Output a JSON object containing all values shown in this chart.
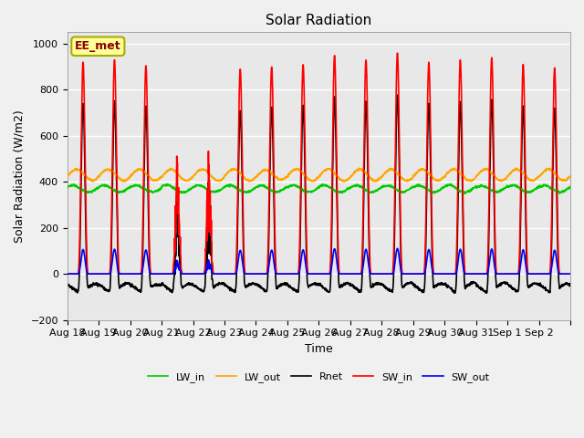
{
  "title": "Solar Radiation",
  "ylabel": "Solar Radiation (W/m2)",
  "xlabel": "Time",
  "ylim": [
    -200,
    1050
  ],
  "annotation_text": "EE_met",
  "annotation_color": "#8B0000",
  "annotation_bg": "#FFFF99",
  "annotation_border": "#AAAA00",
  "lines": {
    "SW_in": {
      "color": "#FF0000",
      "lw": 1.2,
      "zorder": 4
    },
    "SW_out": {
      "color": "#0000FF",
      "lw": 1.2,
      "zorder": 4
    },
    "LW_in": {
      "color": "#00CC00",
      "lw": 1.2,
      "zorder": 3
    },
    "LW_out": {
      "color": "#FFA500",
      "lw": 1.2,
      "zorder": 3
    },
    "Rnet": {
      "color": "#000000",
      "lw": 1.2,
      "zorder": 2
    }
  },
  "xtick_labels": [
    "Aug 18",
    "Aug 19",
    "Aug 20",
    "Aug 21",
    "Aug 22",
    "Aug 23",
    "Aug 24",
    "Aug 25",
    "Aug 26",
    "Aug 27",
    "Aug 28",
    "Aug 29",
    "Aug 30",
    "Aug 31",
    "Sep 1",
    "Sep 2"
  ],
  "grid_color": "#FFFFFF",
  "bg_color": "#E8E8E8",
  "fig_bg": "#F0F0F0",
  "n_days": 16,
  "pts_per_day": 144,
  "legend_ncol": 5,
  "sw_in_peaks": [
    920,
    930,
    905,
    600,
    590,
    890,
    900,
    910,
    950,
    930,
    960,
    920,
    930,
    940,
    910,
    895
  ],
  "cloudy_days": [
    3,
    4
  ],
  "day_start": 0.33,
  "day_end": 0.67
}
